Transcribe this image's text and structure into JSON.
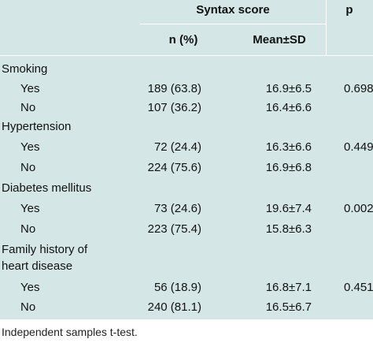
{
  "header": {
    "group_title": "Syntax score",
    "p_label": "p",
    "n_label": "n (%)",
    "mean_label": "Mean±SD"
  },
  "rows": [
    {
      "label": "Smoking",
      "type": "section"
    },
    {
      "label": "Yes",
      "n": "189 (63.8)",
      "mean": "16.9±6.5",
      "p": "0.698"
    },
    {
      "label": "No",
      "n": "107 (36.2)",
      "mean": "16.4±6.6",
      "p": ""
    },
    {
      "label": "Hypertension",
      "type": "section"
    },
    {
      "label": "Yes",
      "n": "72 (24.4)",
      "mean": "16.3±6.6",
      "p": "0.449"
    },
    {
      "label": "No",
      "n": "224 (75.6)",
      "mean": "16.9±6.8",
      "p": ""
    },
    {
      "label": "Diabetes mellitus",
      "type": "section"
    },
    {
      "label": "Yes",
      "n": "73 (24.6)",
      "mean": "19.6±7.4",
      "p": "0.002"
    },
    {
      "label": "No",
      "n": "223 (75.4)",
      "mean": "15.8±6.3",
      "p": ""
    },
    {
      "label": "Family history of",
      "label2": "heart disease",
      "type": "section"
    },
    {
      "label": "Yes",
      "n": "56 (18.9)",
      "mean": "16.8±7.1",
      "p": "0.451"
    },
    {
      "label": "No",
      "n": "240 (81.1)",
      "mean": "16.5±6.7",
      "p": ""
    }
  ],
  "footnote": "Independent samples t-test."
}
